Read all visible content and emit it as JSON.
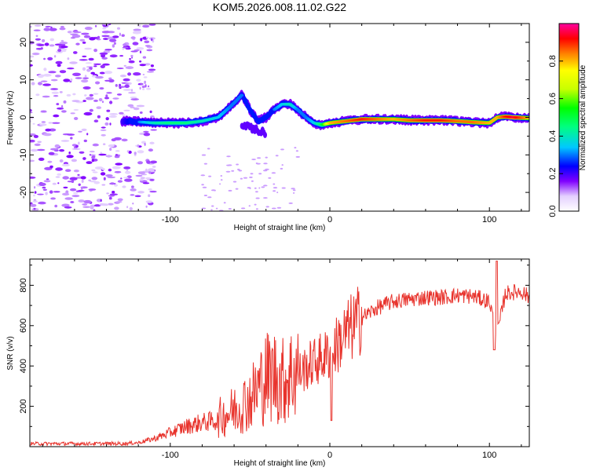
{
  "title": "KOM5.2026.008.11.02.G22",
  "chart_data": [
    {
      "type": "heatmap",
      "xlabel": "Height of straight line (km)",
      "ylabel": "Frequency (Hz)",
      "xlim": [
        -188,
        125
      ],
      "ylim": [
        -25,
        25
      ],
      "xticks": [
        -100,
        0,
        100
      ],
      "xtick_labels": [
        "-100",
        "0",
        "100"
      ],
      "yticks": [
        -20,
        -10,
        0,
        10,
        20
      ],
      "ytick_labels": [
        "-20",
        "-10",
        "0",
        "10",
        "20"
      ],
      "trace": {
        "x": [
          -130,
          -120,
          -110,
          -100,
          -90,
          -80,
          -70,
          -62,
          -55,
          -50,
          -45,
          -40,
          -35,
          -30,
          -25,
          -20,
          -15,
          -10,
          -5,
          0,
          10,
          20,
          30,
          40,
          50,
          60,
          70,
          80,
          90,
          100,
          105,
          110,
          115,
          125
        ],
        "freq": [
          -1,
          -1.2,
          -1.5,
          -1.5,
          -1.5,
          -1,
          0,
          3,
          6,
          2,
          -1,
          0,
          2,
          3.5,
          3.5,
          2,
          0,
          -1.5,
          -2,
          -1.5,
          -1,
          -0.5,
          -0.5,
          -0.5,
          -0.8,
          -0.8,
          -0.8,
          -1,
          -1.3,
          -1.5,
          0,
          0.2,
          0,
          -0.2
        ],
        "amplitude": [
          0.2,
          0.3,
          0.4,
          0.45,
          0.45,
          0.4,
          0.35,
          0.3,
          0.3,
          0.25,
          0.25,
          0.25,
          0.3,
          0.35,
          0.4,
          0.3,
          0.3,
          0.35,
          0.5,
          0.8,
          0.85,
          0.9,
          0.85,
          0.8,
          0.85,
          0.9,
          0.9,
          0.85,
          0.85,
          0.8,
          0.8,
          0.9,
          0.95,
          0.8
        ]
      },
      "colorbar": {
        "label": "Normalized spectral amplitude",
        "range": [
          0,
          1
        ],
        "ticks": [
          0.0,
          0.2,
          0.4,
          0.6,
          0.8
        ],
        "tick_labels": [
          "0.0",
          "0.2",
          "0.4",
          "0.6",
          "0.8"
        ]
      }
    },
    {
      "type": "line",
      "xlabel": "Height of straight line (km)",
      "ylabel": "SNR (v/v)",
      "xlim": [
        -188,
        125
      ],
      "ylim": [
        0,
        930
      ],
      "xticks": [
        -100,
        0,
        100
      ],
      "xtick_labels": [
        "-100",
        "0",
        "100"
      ],
      "yticks": [
        200,
        400,
        600,
        800
      ],
      "ytick_labels": [
        "200",
        "400",
        "600",
        "800"
      ],
      "line_color": "#e8332c",
      "series": [
        {
          "name": "SNR",
          "x": [
            -188,
            -170,
            -150,
            -130,
            -120,
            -110,
            -100,
            -90,
            -80,
            -70,
            -60,
            -50,
            -40,
            -35,
            -30,
            -20,
            -10,
            0,
            10,
            20,
            30,
            40,
            50,
            60,
            70,
            80,
            90,
            100,
            105,
            110,
            120,
            125
          ],
          "y": [
            15,
            15,
            15,
            15,
            20,
            40,
            70,
            100,
            120,
            130,
            170,
            220,
            320,
            330,
            300,
            360,
            420,
            460,
            560,
            640,
            690,
            720,
            730,
            740,
            740,
            750,
            745,
            720,
            560,
            760,
            770,
            740
          ]
        }
      ]
    }
  ]
}
